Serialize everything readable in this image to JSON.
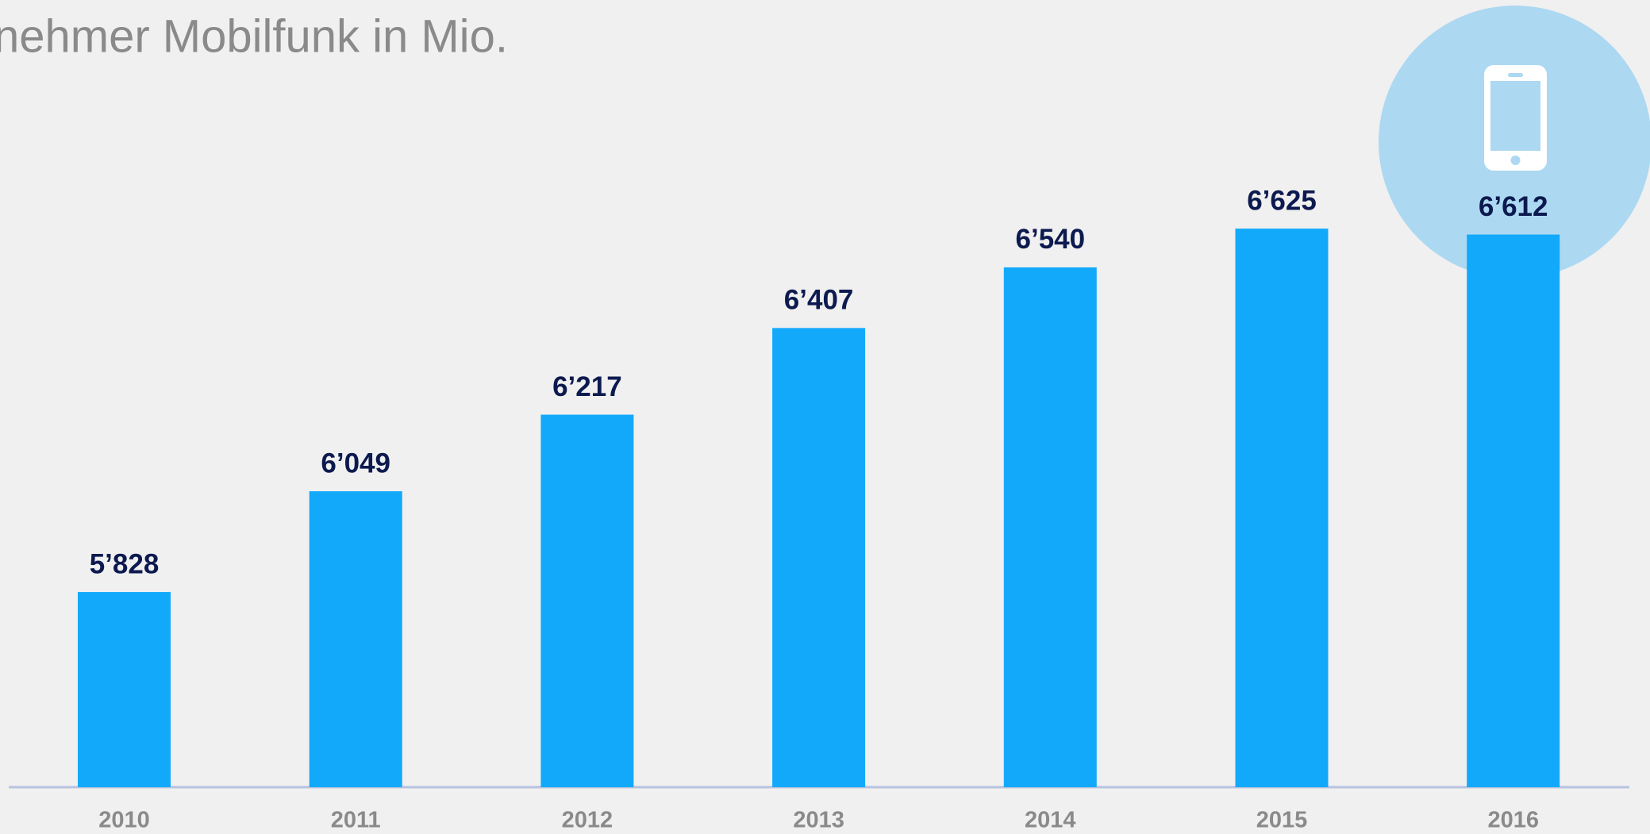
{
  "chart_data": {
    "type": "bar",
    "subtitle": "nehmer Mobilfunk in Mio.",
    "categories": [
      "2010",
      "2011",
      "2012",
      "2013",
      "2014",
      "2015",
      "2016"
    ],
    "values": [
      5828,
      6049,
      6217,
      6407,
      6540,
      6625,
      6612
    ],
    "value_labels": [
      "5’828",
      "6’049",
      "6’217",
      "6’407",
      "6’540",
      "6’625",
      "6’612"
    ],
    "color": "#12a9fb",
    "ylim": [
      5400,
      6700
    ]
  }
}
